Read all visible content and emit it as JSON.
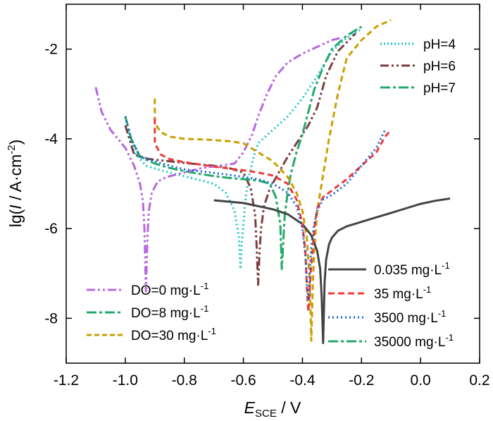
{
  "chart_data": {
    "type": "line",
    "title": "",
    "xlim": [
      -1.2,
      0.2
    ],
    "ylim": [
      -9.0,
      -1.0
    ],
    "xticks": [
      -1.2,
      -1.0,
      -0.8,
      -0.6,
      -0.4,
      -0.2,
      0.0,
      0.2
    ],
    "xtick_labels": [
      "-1.2",
      "-1.0",
      "-0.8",
      "-0.6",
      "-0.4",
      "-0.2",
      "0.0",
      "0.2"
    ],
    "yticks": [
      -8,
      -6,
      -4,
      -2
    ],
    "ytick_labels": [
      "-8",
      "-6",
      "-4",
      "-2"
    ],
    "xlabel": {
      "main": "E",
      "sub": "SCE",
      "unit": " / V"
    },
    "ylabel": {
      "pre": "lg(",
      "var": "I",
      "mid": " / A·cm",
      "sup": "-2",
      "post": ")"
    },
    "series": [
      {
        "name": "pH=4",
        "color": "#19c6c6",
        "dash": "dot",
        "legend_group": "ph",
        "x": [
          -1.0,
          -0.97,
          -0.93,
          -0.88,
          -0.82,
          -0.76,
          -0.7,
          -0.66,
          -0.63,
          -0.615,
          -0.61,
          -0.605,
          -0.6,
          -0.595,
          -0.59,
          -0.58,
          -0.565,
          -0.55,
          -0.5,
          -0.45,
          -0.4,
          -0.35,
          -0.3,
          -0.25,
          -0.2
        ],
        "y": [
          -3.5,
          -4.3,
          -4.6,
          -4.7,
          -4.8,
          -4.9,
          -5.0,
          -5.2,
          -5.6,
          -6.2,
          -6.9,
          -6.3,
          -5.9,
          -5.5,
          -5.2,
          -4.8,
          -4.4,
          -4.1,
          -3.8,
          -3.5,
          -3.1,
          -2.6,
          -2.05,
          -1.75,
          -1.55
        ]
      },
      {
        "name": "pH=6",
        "color": "#7a3f3f",
        "dash": "dashdotdot",
        "legend_group": "ph",
        "x": [
          -1.0,
          -0.97,
          -0.92,
          -0.85,
          -0.78,
          -0.7,
          -0.65,
          -0.6,
          -0.575,
          -0.56,
          -0.555,
          -0.55,
          -0.545,
          -0.54,
          -0.53,
          -0.51,
          -0.48,
          -0.45,
          -0.42,
          -0.38,
          -0.35,
          -0.32,
          -0.28,
          -0.22
        ],
        "y": [
          -3.7,
          -4.35,
          -4.45,
          -4.5,
          -4.55,
          -4.6,
          -4.65,
          -4.75,
          -5.1,
          -5.7,
          -6.4,
          -7.25,
          -6.5,
          -6.0,
          -5.5,
          -5.1,
          -4.75,
          -4.4,
          -4.1,
          -3.7,
          -3.3,
          -2.6,
          -2.05,
          -1.65
        ]
      },
      {
        "name": "pH=7",
        "color": "#23a86b",
        "dash": "dashdot",
        "legend_group": "ph",
        "x": [
          -1.0,
          -0.98,
          -0.95,
          -0.9,
          -0.85,
          -0.8,
          -0.75,
          -0.7,
          -0.65,
          -0.6,
          -0.55,
          -0.51,
          -0.49,
          -0.475,
          -0.47,
          -0.465,
          -0.46,
          -0.45,
          -0.44,
          -0.42,
          -0.4,
          -0.38,
          -0.36,
          -0.33,
          -0.3,
          -0.25,
          -0.2
        ],
        "y": [
          -3.5,
          -4.0,
          -4.4,
          -4.55,
          -4.65,
          -4.72,
          -4.78,
          -4.83,
          -4.87,
          -4.9,
          -4.93,
          -5.0,
          -5.3,
          -5.9,
          -6.9,
          -6.3,
          -5.7,
          -5.2,
          -4.8,
          -4.3,
          -3.9,
          -3.4,
          -2.9,
          -2.4,
          -2.0,
          -1.7,
          -1.5
        ]
      },
      {
        "name": "DO=0 mg·L⁻¹",
        "color": "#b768de",
        "dash": "dashdotdot",
        "legend_group": "do",
        "x": [
          -1.1,
          -1.08,
          -1.05,
          -1.0,
          -0.97,
          -0.95,
          -0.94,
          -0.935,
          -0.93,
          -0.925,
          -0.92,
          -0.91,
          -0.89,
          -0.86,
          -0.8,
          -0.74,
          -0.68,
          -0.63,
          -0.6,
          -0.57,
          -0.55,
          -0.52,
          -0.49,
          -0.45,
          -0.4,
          -0.35,
          -0.3,
          -0.27
        ],
        "y": [
          -2.85,
          -3.4,
          -3.8,
          -4.2,
          -4.6,
          -5.0,
          -5.4,
          -6.0,
          -7.4,
          -6.2,
          -5.6,
          -5.2,
          -4.95,
          -4.85,
          -4.75,
          -4.65,
          -4.6,
          -4.55,
          -4.3,
          -3.9,
          -3.5,
          -3.0,
          -2.6,
          -2.3,
          -2.1,
          -1.95,
          -1.8,
          -1.75
        ]
      },
      {
        "name": "DO=8 mg·L⁻¹",
        "color": "#23a86b",
        "dash": "dashdot",
        "legend_group": "do",
        "x": [],
        "y": []
      },
      {
        "name": "DO=30 mg·L⁻¹",
        "color": "#c9a000",
        "dash": "dash",
        "legend_group": "do",
        "x": [
          -0.9,
          -0.9,
          -0.88,
          -0.85,
          -0.8,
          -0.72,
          -0.65,
          -0.6,
          -0.55,
          -0.5,
          -0.45,
          -0.42,
          -0.4,
          -0.385,
          -0.375,
          -0.37,
          -0.365,
          -0.36,
          -0.35,
          -0.33,
          -0.31,
          -0.28,
          -0.25,
          -0.2,
          -0.15,
          -0.1
        ],
        "y": [
          -3.1,
          -3.65,
          -3.85,
          -3.95,
          -4.0,
          -4.02,
          -4.05,
          -4.1,
          -4.3,
          -4.5,
          -4.85,
          -5.2,
          -5.6,
          -6.2,
          -7.2,
          -8.5,
          -7.3,
          -6.5,
          -5.6,
          -4.8,
          -4.0,
          -3.0,
          -2.2,
          -1.8,
          -1.5,
          -1.35
        ]
      },
      {
        "name": "0.035 mg·L⁻¹",
        "color": "#444444",
        "dash": "solid",
        "legend_group": "cl",
        "x": [
          -0.7,
          -0.6,
          -0.5,
          -0.45,
          -0.4,
          -0.37,
          -0.35,
          -0.34,
          -0.335,
          -0.33,
          -0.325,
          -0.32,
          -0.31,
          -0.3,
          -0.28,
          -0.25,
          -0.2,
          -0.15,
          -0.1,
          -0.05,
          0.0,
          0.05,
          0.1
        ],
        "y": [
          -5.37,
          -5.43,
          -5.57,
          -5.68,
          -5.9,
          -6.15,
          -6.5,
          -6.9,
          -7.5,
          -8.55,
          -7.2,
          -6.7,
          -6.35,
          -6.2,
          -6.05,
          -5.95,
          -5.85,
          -5.75,
          -5.65,
          -5.55,
          -5.45,
          -5.38,
          -5.33
        ]
      },
      {
        "name": "35 mg·L⁻¹",
        "color": "#ef3a3a",
        "dash": "dash",
        "legend_group": "cl",
        "x": [
          -0.9,
          -0.9,
          -0.88,
          -0.85,
          -0.8,
          -0.75,
          -0.7,
          -0.65,
          -0.6,
          -0.55,
          -0.5,
          -0.45,
          -0.42,
          -0.4,
          -0.39,
          -0.385,
          -0.38,
          -0.37,
          -0.36,
          -0.35,
          -0.33,
          -0.3,
          -0.25,
          -0.2,
          -0.15,
          -0.12,
          -0.1
        ],
        "y": [
          -3.55,
          -4.1,
          -4.35,
          -4.45,
          -4.52,
          -4.57,
          -4.62,
          -4.66,
          -4.7,
          -4.75,
          -4.82,
          -5.0,
          -5.35,
          -5.9,
          -6.5,
          -7.3,
          -7.85,
          -6.8,
          -6.0,
          -5.55,
          -5.3,
          -5.15,
          -4.9,
          -4.6,
          -4.3,
          -3.95,
          -3.8
        ]
      },
      {
        "name": "3500 mg·L⁻¹",
        "color": "#1560d4",
        "dash": "dot",
        "legend_group": "cl",
        "x": [
          -1.0,
          -0.98,
          -0.95,
          -0.9,
          -0.85,
          -0.8,
          -0.75,
          -0.7,
          -0.65,
          -0.6,
          -0.55,
          -0.5,
          -0.45,
          -0.42,
          -0.4,
          -0.39,
          -0.385,
          -0.38,
          -0.375,
          -0.37,
          -0.36,
          -0.35,
          -0.33,
          -0.3,
          -0.25,
          -0.2,
          -0.15,
          -0.12
        ],
        "y": [
          -3.5,
          -4.0,
          -4.4,
          -4.5,
          -4.6,
          -4.68,
          -4.72,
          -4.76,
          -4.8,
          -4.85,
          -4.9,
          -5.0,
          -5.2,
          -5.5,
          -6.0,
          -6.6,
          -7.2,
          -7.6,
          -7.0,
          -6.4,
          -5.9,
          -5.6,
          -5.35,
          -5.25,
          -5.0,
          -4.6,
          -4.2,
          -3.8
        ]
      },
      {
        "name": "35000 mg·L⁻¹",
        "color": "#23a86b",
        "dash": "dashdot",
        "legend_group": "cl",
        "x": [],
        "y": []
      }
    ],
    "legends": {
      "ph": {
        "placement": "top-right",
        "entries": [
          "pH=4",
          "pH=6",
          "pH=7"
        ]
      },
      "do": {
        "placement": "bottom-left",
        "entries": [
          "DO=0 mg·L⁻¹",
          "DO=8 mg·L⁻¹",
          "DO=30 mg·L⁻¹"
        ]
      },
      "cl": {
        "placement": "bottom-right",
        "entries": [
          "0.035 mg·L⁻¹",
          "35 mg·L⁻¹",
          "3500 mg·L⁻¹",
          "35000 mg·L⁻¹"
        ]
      }
    },
    "legend_labels": [
      {
        "id": "ph4",
        "text": "pH=4"
      },
      {
        "id": "ph6",
        "text": "pH=6"
      },
      {
        "id": "ph7",
        "text": "pH=7"
      },
      {
        "id": "do0",
        "pre": "DO=0 mg·L",
        "sup": "-1"
      },
      {
        "id": "do8",
        "pre": "DO=8 mg·L",
        "sup": "-1"
      },
      {
        "id": "do30",
        "pre": "DO=30 mg·L",
        "sup": "-1"
      },
      {
        "id": "c0",
        "pre": "0.035 mg·L",
        "sup": "-1"
      },
      {
        "id": "c35",
        "pre": "35 mg·L",
        "sup": "-1"
      },
      {
        "id": "c3500",
        "pre": "3500 mg·L",
        "sup": "-1"
      },
      {
        "id": "c35000",
        "pre": "35000 mg·L",
        "sup": "-1"
      }
    ],
    "grid": false
  }
}
